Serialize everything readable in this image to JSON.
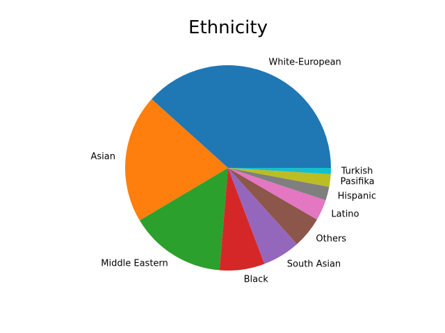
{
  "chart_data": {
    "type": "pie",
    "title": "Ethnicity",
    "start_angle_deg": 0,
    "direction": "counterclockwise",
    "slices": [
      {
        "label": "White-European",
        "value": 233,
        "color": "#1f77b4"
      },
      {
        "label": "Asian",
        "value": 123,
        "color": "#ff7f0e"
      },
      {
        "label": "Middle Eastern",
        "value": 92,
        "color": "#2ca02c"
      },
      {
        "label": "Black",
        "value": 43,
        "color": "#d62728"
      },
      {
        "label": "South Asian",
        "value": 36,
        "color": "#9467bd"
      },
      {
        "label": "Others",
        "value": 30,
        "color": "#8c564b"
      },
      {
        "label": "Latino",
        "value": 20,
        "color": "#e377c2"
      },
      {
        "label": "Hispanic",
        "value": 13,
        "color": "#7f7f7f"
      },
      {
        "label": "Pasifika",
        "value": 12,
        "color": "#bcbd22"
      },
      {
        "label": "Turkish",
        "value": 6,
        "color": "#17becf"
      }
    ]
  }
}
